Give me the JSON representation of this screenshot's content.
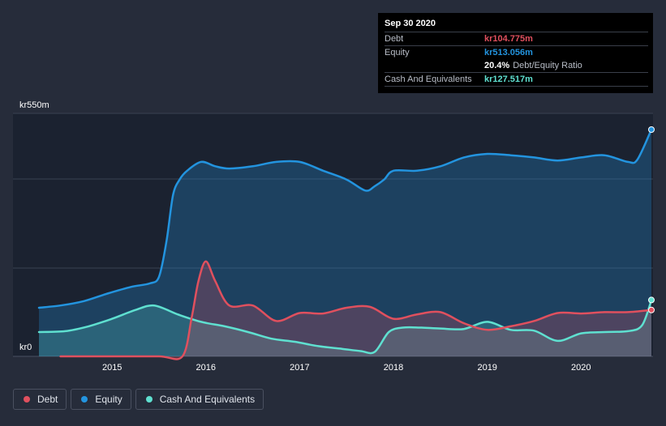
{
  "tooltip": {
    "date": "Sep 30 2020",
    "debt_label": "Debt",
    "debt_value": "kr104.775m",
    "equity_label": "Equity",
    "equity_value": "kr513.056m",
    "ratio_value": "20.4%",
    "ratio_label": "Debt/Equity Ratio",
    "cash_label": "Cash And Equivalents",
    "cash_value": "kr127.517m"
  },
  "legend": {
    "debt": "Debt",
    "equity": "Equity",
    "cash": "Cash And Equivalents"
  },
  "colors": {
    "debt": "#e0505e",
    "equity": "#2394df",
    "cash": "#5fe0d0",
    "background": "#262c3a",
    "plot_background": "#1b2230"
  },
  "chart_data": {
    "type": "area",
    "title": "",
    "y_top_label": "kr550m",
    "y_bottom_label": "kr0",
    "ylim": [
      0,
      550
    ],
    "xlim": [
      2014.22,
      2020.75
    ],
    "x_ticks": [
      {
        "value": 2015,
        "label": "2015"
      },
      {
        "value": 2016,
        "label": "2016"
      },
      {
        "value": 2017,
        "label": "2017"
      },
      {
        "value": 2018,
        "label": "2018"
      },
      {
        "value": 2019,
        "label": "2019"
      },
      {
        "value": 2020,
        "label": "2020"
      }
    ],
    "series": [
      {
        "name": "Equity",
        "key": "equity",
        "x": [
          2014.22,
          2014.45,
          2014.7,
          2014.95,
          2015.2,
          2015.4,
          2015.5,
          2015.58,
          2015.65,
          2015.72,
          2015.8,
          2015.95,
          2016.1,
          2016.25,
          2016.5,
          2016.75,
          2017.0,
          2017.25,
          2017.5,
          2017.7,
          2017.8,
          2017.9,
          2018.0,
          2018.25,
          2018.5,
          2018.75,
          2019.0,
          2019.25,
          2019.5,
          2019.75,
          2020.0,
          2020.25,
          2020.5,
          2020.6,
          2020.75
        ],
        "values": [
          110,
          115,
          125,
          142,
          157,
          165,
          180,
          260,
          365,
          400,
          420,
          440,
          430,
          425,
          430,
          440,
          440,
          420,
          400,
          375,
          385,
          400,
          420,
          420,
          430,
          450,
          458,
          455,
          450,
          443,
          450,
          455,
          440,
          445,
          513
        ]
      },
      {
        "name": "Cash And Equivalents",
        "key": "cash",
        "x": [
          2014.22,
          2014.5,
          2014.75,
          2015.0,
          2015.25,
          2015.45,
          2015.7,
          2015.95,
          2016.2,
          2016.45,
          2016.7,
          2016.95,
          2017.2,
          2017.45,
          2017.65,
          2017.8,
          2017.95,
          2018.1,
          2018.3,
          2018.5,
          2018.75,
          2019.0,
          2019.25,
          2019.5,
          2019.75,
          2020.0,
          2020.25,
          2020.5,
          2020.65,
          2020.75
        ],
        "values": [
          55,
          57,
          68,
          85,
          105,
          115,
          95,
          78,
          68,
          55,
          40,
          33,
          23,
          17,
          12,
          10,
          55,
          65,
          65,
          63,
          62,
          78,
          60,
          58,
          35,
          52,
          55,
          57,
          70,
          127.5
        ]
      },
      {
        "name": "Debt",
        "key": "debt",
        "x": [
          2014.45,
          2015.0,
          2015.5,
          2015.75,
          2015.85,
          2015.92,
          2016.0,
          2016.1,
          2016.25,
          2016.5,
          2016.75,
          2017.0,
          2017.25,
          2017.5,
          2017.75,
          2018.0,
          2018.25,
          2018.5,
          2018.75,
          2019.0,
          2019.25,
          2019.5,
          2019.75,
          2020.0,
          2020.25,
          2020.5,
          2020.75
        ],
        "values": [
          0,
          0,
          0,
          0,
          90,
          170,
          215,
          170,
          115,
          115,
          80,
          98,
          97,
          110,
          112,
          85,
          95,
          100,
          75,
          60,
          68,
          80,
          98,
          97,
          100,
          100,
          104.8
        ]
      }
    ]
  }
}
